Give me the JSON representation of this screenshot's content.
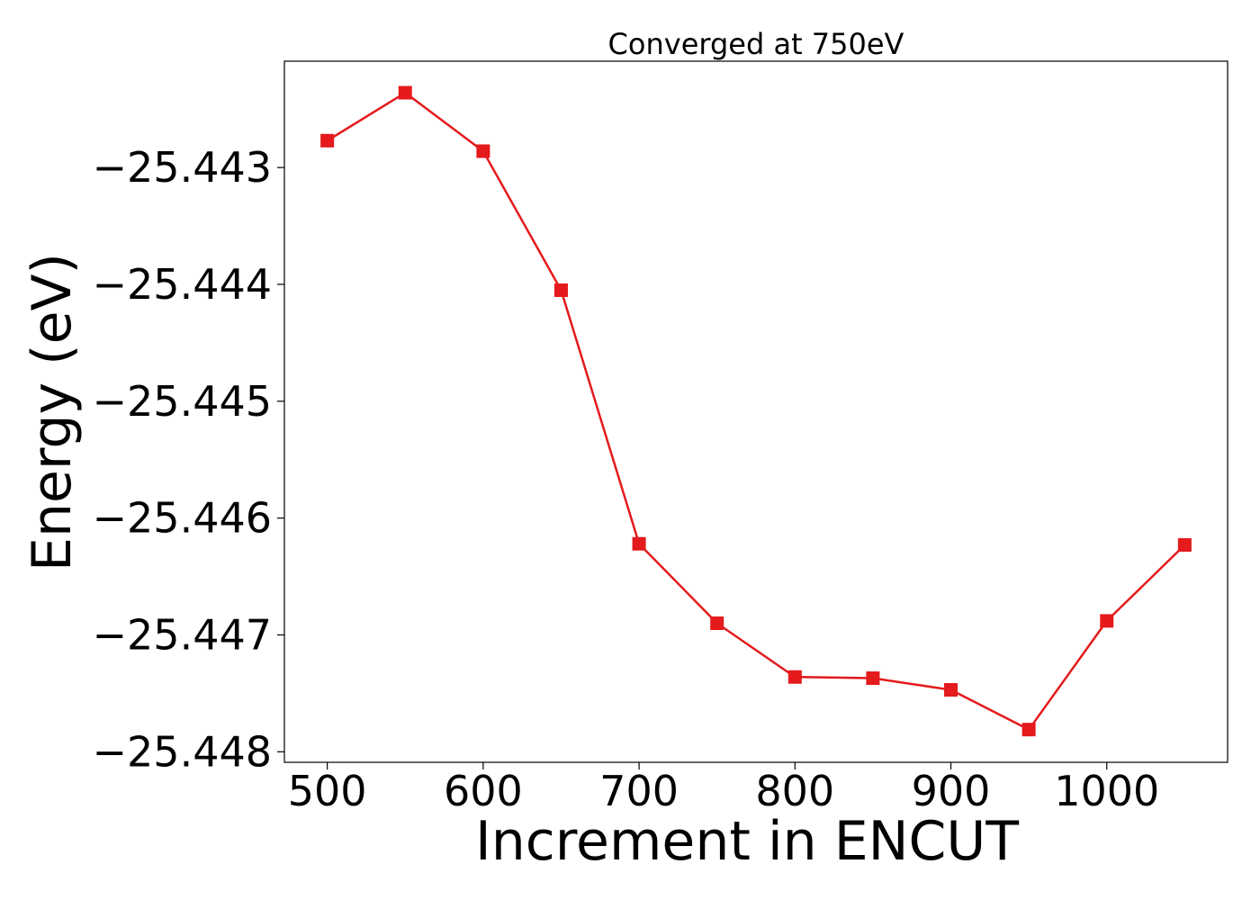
{
  "chart_data": {
    "type": "line",
    "title": "Converged at 750eV",
    "xlabel": "Increment in ENCUT",
    "ylabel": "Energy (eV)",
    "x": [
      500,
      550,
      600,
      650,
      700,
      750,
      800,
      850,
      900,
      950,
      1000,
      1050
    ],
    "series": [
      {
        "values": [
          -25.44277,
          -25.44236,
          -25.44286,
          -25.44405,
          -25.44622,
          -25.4469,
          -25.44736,
          -25.44737,
          -25.44747,
          -25.44781,
          -25.44688,
          -25.44623
        ],
        "color": "#e41a1c",
        "marker": "square"
      }
    ],
    "xlim": [
      472.5,
      1077.5
    ],
    "ylim": [
      -25.44809,
      -25.44209
    ],
    "xticks": [
      500,
      600,
      700,
      800,
      900,
      1000
    ],
    "xtick_labels": [
      "500",
      "600",
      "700",
      "800",
      "900",
      "1000"
    ],
    "yticks": [
      -25.448,
      -25.447,
      -25.446,
      -25.445,
      -25.444,
      -25.443
    ],
    "ytick_labels": [
      "−25.448",
      "−25.447",
      "−25.446",
      "−25.445",
      "−25.444",
      "−25.443"
    ],
    "grid": false,
    "legend": "none"
  }
}
